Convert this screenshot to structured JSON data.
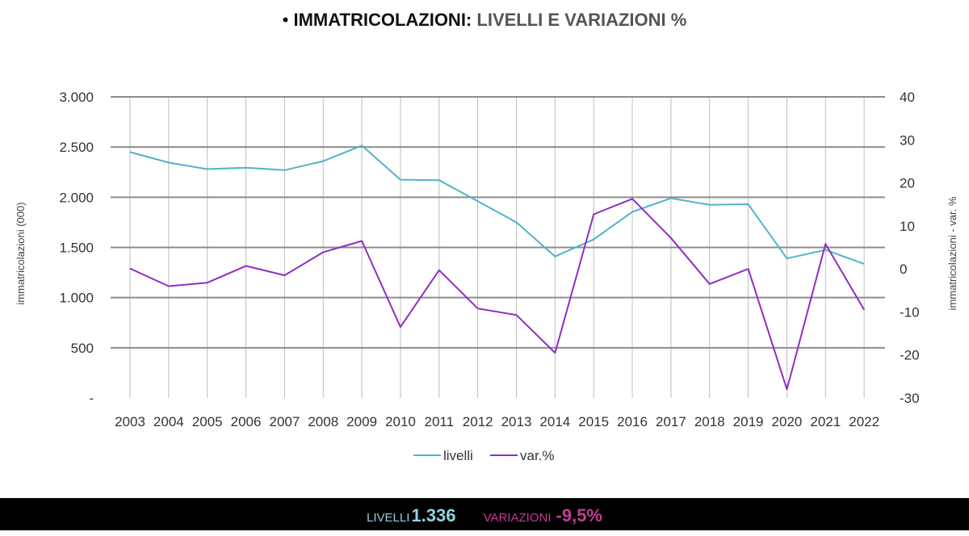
{
  "header": {
    "bullet": "•",
    "title_bold": "IMMATRICOLAZIONI:",
    "title_rest": "LIVELLI E VARIAZIONI %"
  },
  "footer": {
    "livelli_label": "LIVELLI",
    "livelli_value": "1.336",
    "variazioni_label": "VARIAZIONI",
    "variazioni_value": "-9,5%"
  },
  "colors": {
    "livelli": "#4fb3c8",
    "var": "#8e2ec4",
    "grid": "#8c8c8c",
    "vgrid": "#bdbdbd"
  },
  "chart_data": {
    "type": "line",
    "x": [
      2003,
      2004,
      2005,
      2006,
      2007,
      2008,
      2009,
      2010,
      2011,
      2012,
      2013,
      2014,
      2015,
      2016,
      2017,
      2018,
      2019,
      2020,
      2021,
      2022
    ],
    "series": [
      {
        "name": "livelli",
        "axis": "left",
        "values": [
          2450,
          2345,
          2280,
          2295,
          2270,
          2360,
          2515,
          2175,
          2170,
          1960,
          1750,
          1410,
          1580,
          1855,
          1990,
          1925,
          1930,
          1390,
          1475,
          1336
        ]
      },
      {
        "name": "var.%",
        "axis": "right",
        "values": [
          0.1,
          -4.0,
          -3.2,
          0.7,
          -1.5,
          3.9,
          6.5,
          -13.5,
          -0.3,
          -9.2,
          -10.7,
          -19.5,
          12.7,
          16.3,
          7.2,
          -3.5,
          0.0,
          -28.0,
          5.8,
          -9.5
        ]
      }
    ],
    "y_left": {
      "label": "immatricolazioni  (000)",
      "ticks": [
        0,
        500,
        1000,
        1500,
        2000,
        2500,
        3000
      ],
      "tick_labels": [
        "-",
        "500",
        "1.000",
        "1.500",
        "2.000",
        "2.500",
        "3.000"
      ],
      "lim": [
        0,
        3000
      ]
    },
    "y_right": {
      "label": "immatricolazioni - var. %",
      "ticks": [
        -30,
        -20,
        -10,
        0,
        10,
        20,
        30,
        40
      ],
      "tick_labels": [
        "-30",
        "-20",
        "-10",
        "0",
        "10",
        "20",
        "30",
        "40"
      ],
      "lim": [
        -30,
        40
      ]
    },
    "legend": {
      "position": "bottom",
      "items": [
        "livelli",
        "var.%"
      ]
    },
    "grid": true
  }
}
